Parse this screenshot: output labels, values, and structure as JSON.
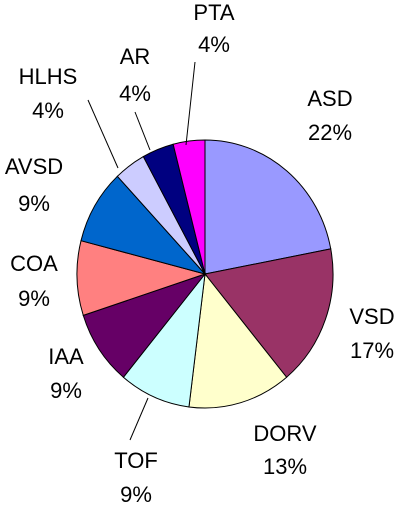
{
  "chart_data": {
    "type": "pie",
    "categories": [
      "ASD",
      "VSD",
      "DORV",
      "TOF",
      "IAA",
      "COA",
      "AVSD",
      "HLHS",
      "AR",
      "PTA"
    ],
    "values": [
      22,
      17,
      13,
      9,
      9,
      9,
      9,
      4,
      4,
      4
    ],
    "value_labels": [
      "22%",
      "17%",
      "13%",
      "9%",
      "9%",
      "9%",
      "9%",
      "4%",
      "4%",
      "4%"
    ],
    "colors": [
      "#9999ff",
      "#993366",
      "#ffffcc",
      "#ccffff",
      "#660066",
      "#ff8080",
      "#0066cc",
      "#ccccff",
      "#000080",
      "#ff00ff"
    ]
  }
}
